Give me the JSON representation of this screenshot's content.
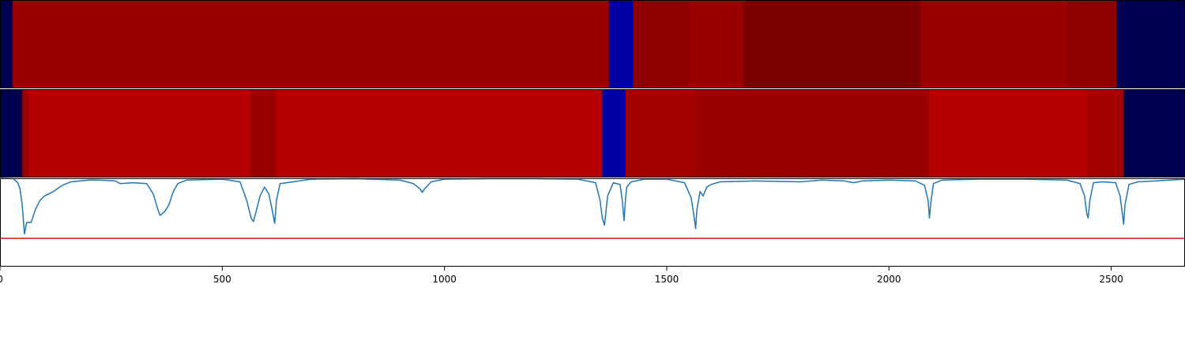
{
  "chart_data": {
    "type": "heatmap",
    "title": "",
    "xlabel": "",
    "ylabel": "",
    "xlim": [
      0,
      2666
    ],
    "xticks": [
      0,
      500,
      1000,
      1500,
      2000,
      2500
    ],
    "xtick_labels": [
      "0",
      "500",
      "1000",
      "1500",
      "2000",
      "2500"
    ],
    "grid": false,
    "heatmap_rows": [
      {
        "segments": [
          {
            "start": 0,
            "end": 28,
            "color": "#000050"
          },
          {
            "start": 28,
            "end": 1370,
            "color": "#990000"
          },
          {
            "start": 1370,
            "end": 1424,
            "color": "#0000a0"
          },
          {
            "start": 1424,
            "end": 1550,
            "color": "#8c0000"
          },
          {
            "start": 1550,
            "end": 1672,
            "color": "#990000"
          },
          {
            "start": 1672,
            "end": 2071,
            "color": "#7c0000"
          },
          {
            "start": 2071,
            "end": 2400,
            "color": "#990000"
          },
          {
            "start": 2400,
            "end": 2512,
            "color": "#8c0000"
          },
          {
            "start": 2512,
            "end": 2666,
            "color": "#000050"
          }
        ]
      },
      {
        "segments": [
          {
            "start": 0,
            "end": 50,
            "color": "#000050"
          },
          {
            "start": 50,
            "end": 64,
            "color": "#990000"
          },
          {
            "start": 64,
            "end": 563,
            "color": "#b40000"
          },
          {
            "start": 563,
            "end": 622,
            "color": "#990000"
          },
          {
            "start": 622,
            "end": 1355,
            "color": "#b40000"
          },
          {
            "start": 1355,
            "end": 1407,
            "color": "#0000a0"
          },
          {
            "start": 1407,
            "end": 1565,
            "color": "#a30000"
          },
          {
            "start": 1565,
            "end": 2091,
            "color": "#990000"
          },
          {
            "start": 2091,
            "end": 2447,
            "color": "#b40000"
          },
          {
            "start": 2447,
            "end": 2528,
            "color": "#a30000"
          },
          {
            "start": 2528,
            "end": 2666,
            "color": "#000050"
          }
        ]
      }
    ],
    "line_panel": {
      "ylim": [
        -1.0,
        0.0
      ],
      "line_color": "#1f77b4",
      "threshold": -0.68,
      "threshold_color": "#e01010",
      "series": [
        {
          "x": [
            0,
            30,
            40,
            45,
            50,
            55,
            60,
            70,
            80,
            90,
            100,
            120,
            140,
            160,
            180,
            200,
            220,
            260,
            270,
            300,
            330,
            345,
            355,
            360,
            365,
            370,
            380,
            390,
            400,
            420,
            460,
            500,
            540,
            555,
            565,
            570,
            575,
            585,
            595,
            605,
            612,
            618,
            622,
            630,
            645,
            700,
            800,
            900,
            930,
            945,
            950,
            955,
            970,
            1000,
            1100,
            1200,
            1300,
            1340,
            1350,
            1355,
            1360,
            1367,
            1380,
            1395,
            1400,
            1404,
            1407,
            1410,
            1420,
            1450,
            1500,
            1540,
            1555,
            1562,
            1565,
            1568,
            1575,
            1582,
            1590,
            1600,
            1620,
            1700,
            1800,
            1850,
            1900,
            1920,
            1940,
            2000,
            2060,
            2080,
            2088,
            2091,
            2094,
            2100,
            2120,
            2200,
            2300,
            2400,
            2430,
            2440,
            2445,
            2448,
            2452,
            2460,
            2480,
            2510,
            2520,
            2525,
            2528,
            2531,
            2540,
            2560,
            2600,
            2666
          ],
          "y": [
            0.0,
            -0.005,
            -0.05,
            -0.12,
            -0.3,
            -0.63,
            -0.5,
            -0.5,
            -0.35,
            -0.25,
            -0.2,
            -0.15,
            -0.08,
            -0.04,
            -0.03,
            -0.02,
            -0.02,
            -0.03,
            -0.06,
            -0.05,
            -0.06,
            -0.18,
            -0.35,
            -0.42,
            -0.4,
            -0.38,
            -0.3,
            -0.15,
            -0.06,
            -0.02,
            -0.015,
            -0.01,
            -0.04,
            -0.25,
            -0.45,
            -0.49,
            -0.4,
            -0.2,
            -0.1,
            -0.18,
            -0.35,
            -0.51,
            -0.25,
            -0.06,
            -0.05,
            -0.01,
            -0.005,
            -0.02,
            -0.06,
            -0.12,
            -0.16,
            -0.12,
            -0.04,
            -0.01,
            -0.005,
            -0.005,
            -0.01,
            -0.05,
            -0.25,
            -0.45,
            -0.53,
            -0.2,
            -0.05,
            -0.07,
            -0.25,
            -0.48,
            -0.25,
            -0.1,
            -0.04,
            -0.01,
            -0.01,
            -0.05,
            -0.22,
            -0.45,
            -0.57,
            -0.35,
            -0.15,
            -0.2,
            -0.1,
            -0.07,
            -0.04,
            -0.03,
            -0.04,
            -0.02,
            -0.03,
            -0.05,
            -0.03,
            -0.02,
            -0.03,
            -0.08,
            -0.25,
            -0.45,
            -0.28,
            -0.06,
            -0.02,
            -0.01,
            -0.01,
            -0.02,
            -0.06,
            -0.2,
            -0.4,
            -0.45,
            -0.25,
            -0.05,
            -0.04,
            -0.05,
            -0.2,
            -0.4,
            -0.52,
            -0.3,
            -0.07,
            -0.04,
            -0.03,
            -0.01
          ]
        }
      ]
    }
  }
}
